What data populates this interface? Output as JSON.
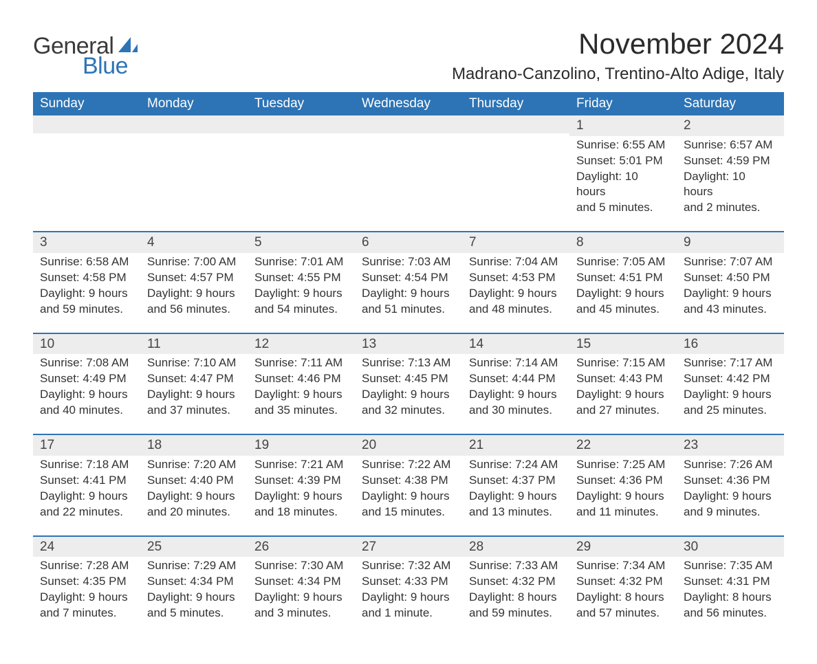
{
  "logo": {
    "text1": "General",
    "text2": "Blue",
    "accent_color": "#2d74b6"
  },
  "title": "November 2024",
  "location": "Madrano-Canzolino, Trentino-Alto Adige, Italy",
  "colors": {
    "header_bg": "#2d74b6",
    "header_text": "#ffffff",
    "daynum_bg": "#ededed",
    "daynum_border": "#2d74b6",
    "body_text": "#333333",
    "page_bg": "#ffffff"
  },
  "fonts": {
    "title_size_pt": 32,
    "location_size_pt": 18,
    "header_size_pt": 14,
    "body_size_pt": 13
  },
  "weekdays": [
    "Sunday",
    "Monday",
    "Tuesday",
    "Wednesday",
    "Thursday",
    "Friday",
    "Saturday"
  ],
  "weeks": [
    [
      null,
      null,
      null,
      null,
      null,
      {
        "n": "1",
        "sunrise": "Sunrise: 6:55 AM",
        "sunset": "Sunset: 5:01 PM",
        "dl1": "Daylight: 10 hours",
        "dl2": "and 5 minutes."
      },
      {
        "n": "2",
        "sunrise": "Sunrise: 6:57 AM",
        "sunset": "Sunset: 4:59 PM",
        "dl1": "Daylight: 10 hours",
        "dl2": "and 2 minutes."
      }
    ],
    [
      {
        "n": "3",
        "sunrise": "Sunrise: 6:58 AM",
        "sunset": "Sunset: 4:58 PM",
        "dl1": "Daylight: 9 hours",
        "dl2": "and 59 minutes."
      },
      {
        "n": "4",
        "sunrise": "Sunrise: 7:00 AM",
        "sunset": "Sunset: 4:57 PM",
        "dl1": "Daylight: 9 hours",
        "dl2": "and 56 minutes."
      },
      {
        "n": "5",
        "sunrise": "Sunrise: 7:01 AM",
        "sunset": "Sunset: 4:55 PM",
        "dl1": "Daylight: 9 hours",
        "dl2": "and 54 minutes."
      },
      {
        "n": "6",
        "sunrise": "Sunrise: 7:03 AM",
        "sunset": "Sunset: 4:54 PM",
        "dl1": "Daylight: 9 hours",
        "dl2": "and 51 minutes."
      },
      {
        "n": "7",
        "sunrise": "Sunrise: 7:04 AM",
        "sunset": "Sunset: 4:53 PM",
        "dl1": "Daylight: 9 hours",
        "dl2": "and 48 minutes."
      },
      {
        "n": "8",
        "sunrise": "Sunrise: 7:05 AM",
        "sunset": "Sunset: 4:51 PM",
        "dl1": "Daylight: 9 hours",
        "dl2": "and 45 minutes."
      },
      {
        "n": "9",
        "sunrise": "Sunrise: 7:07 AM",
        "sunset": "Sunset: 4:50 PM",
        "dl1": "Daylight: 9 hours",
        "dl2": "and 43 minutes."
      }
    ],
    [
      {
        "n": "10",
        "sunrise": "Sunrise: 7:08 AM",
        "sunset": "Sunset: 4:49 PM",
        "dl1": "Daylight: 9 hours",
        "dl2": "and 40 minutes."
      },
      {
        "n": "11",
        "sunrise": "Sunrise: 7:10 AM",
        "sunset": "Sunset: 4:47 PM",
        "dl1": "Daylight: 9 hours",
        "dl2": "and 37 minutes."
      },
      {
        "n": "12",
        "sunrise": "Sunrise: 7:11 AM",
        "sunset": "Sunset: 4:46 PM",
        "dl1": "Daylight: 9 hours",
        "dl2": "and 35 minutes."
      },
      {
        "n": "13",
        "sunrise": "Sunrise: 7:13 AM",
        "sunset": "Sunset: 4:45 PM",
        "dl1": "Daylight: 9 hours",
        "dl2": "and 32 minutes."
      },
      {
        "n": "14",
        "sunrise": "Sunrise: 7:14 AM",
        "sunset": "Sunset: 4:44 PM",
        "dl1": "Daylight: 9 hours",
        "dl2": "and 30 minutes."
      },
      {
        "n": "15",
        "sunrise": "Sunrise: 7:15 AM",
        "sunset": "Sunset: 4:43 PM",
        "dl1": "Daylight: 9 hours",
        "dl2": "and 27 minutes."
      },
      {
        "n": "16",
        "sunrise": "Sunrise: 7:17 AM",
        "sunset": "Sunset: 4:42 PM",
        "dl1": "Daylight: 9 hours",
        "dl2": "and 25 minutes."
      }
    ],
    [
      {
        "n": "17",
        "sunrise": "Sunrise: 7:18 AM",
        "sunset": "Sunset: 4:41 PM",
        "dl1": "Daylight: 9 hours",
        "dl2": "and 22 minutes."
      },
      {
        "n": "18",
        "sunrise": "Sunrise: 7:20 AM",
        "sunset": "Sunset: 4:40 PM",
        "dl1": "Daylight: 9 hours",
        "dl2": "and 20 minutes."
      },
      {
        "n": "19",
        "sunrise": "Sunrise: 7:21 AM",
        "sunset": "Sunset: 4:39 PM",
        "dl1": "Daylight: 9 hours",
        "dl2": "and 18 minutes."
      },
      {
        "n": "20",
        "sunrise": "Sunrise: 7:22 AM",
        "sunset": "Sunset: 4:38 PM",
        "dl1": "Daylight: 9 hours",
        "dl2": "and 15 minutes."
      },
      {
        "n": "21",
        "sunrise": "Sunrise: 7:24 AM",
        "sunset": "Sunset: 4:37 PM",
        "dl1": "Daylight: 9 hours",
        "dl2": "and 13 minutes."
      },
      {
        "n": "22",
        "sunrise": "Sunrise: 7:25 AM",
        "sunset": "Sunset: 4:36 PM",
        "dl1": "Daylight: 9 hours",
        "dl2": "and 11 minutes."
      },
      {
        "n": "23",
        "sunrise": "Sunrise: 7:26 AM",
        "sunset": "Sunset: 4:36 PM",
        "dl1": "Daylight: 9 hours",
        "dl2": "and 9 minutes."
      }
    ],
    [
      {
        "n": "24",
        "sunrise": "Sunrise: 7:28 AM",
        "sunset": "Sunset: 4:35 PM",
        "dl1": "Daylight: 9 hours",
        "dl2": "and 7 minutes."
      },
      {
        "n": "25",
        "sunrise": "Sunrise: 7:29 AM",
        "sunset": "Sunset: 4:34 PM",
        "dl1": "Daylight: 9 hours",
        "dl2": "and 5 minutes."
      },
      {
        "n": "26",
        "sunrise": "Sunrise: 7:30 AM",
        "sunset": "Sunset: 4:34 PM",
        "dl1": "Daylight: 9 hours",
        "dl2": "and 3 minutes."
      },
      {
        "n": "27",
        "sunrise": "Sunrise: 7:32 AM",
        "sunset": "Sunset: 4:33 PM",
        "dl1": "Daylight: 9 hours",
        "dl2": "and 1 minute."
      },
      {
        "n": "28",
        "sunrise": "Sunrise: 7:33 AM",
        "sunset": "Sunset: 4:32 PM",
        "dl1": "Daylight: 8 hours",
        "dl2": "and 59 minutes."
      },
      {
        "n": "29",
        "sunrise": "Sunrise: 7:34 AM",
        "sunset": "Sunset: 4:32 PM",
        "dl1": "Daylight: 8 hours",
        "dl2": "and 57 minutes."
      },
      {
        "n": "30",
        "sunrise": "Sunrise: 7:35 AM",
        "sunset": "Sunset: 4:31 PM",
        "dl1": "Daylight: 8 hours",
        "dl2": "and 56 minutes."
      }
    ]
  ]
}
